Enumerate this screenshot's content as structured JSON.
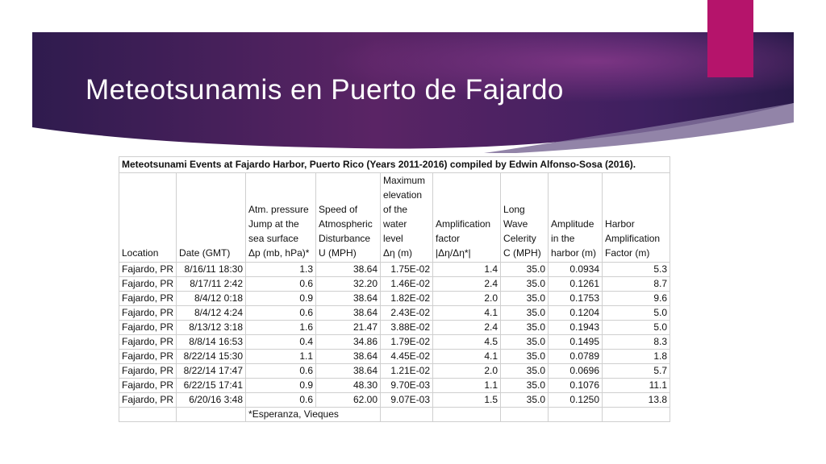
{
  "slide": {
    "title": "Meteotsunamis en Puerto de Fajardo",
    "colors": {
      "banner_dark": "#2f1b4e",
      "banner_mid": "#5a2465",
      "banner_glow": "#8a3a8c",
      "accent": "#b5146b"
    }
  },
  "table": {
    "caption": "Meteotsunami Events at Fajardo Harbor, Puerto Rico (Years 2011-2016) compiled by Edwin Alfonso-Sosa (2016).",
    "headers": [
      [
        "Location"
      ],
      [
        "Date (GMT)"
      ],
      [
        "Atm. pressure",
        "Jump at the",
        "sea surface",
        "Δp (mb, hPa)*"
      ],
      [
        "Speed of",
        "Atmospheric",
        "Disturbance",
        "U (MPH)"
      ],
      [
        "Maximum",
        "elevation",
        "of the",
        "water",
        "level",
        "Δη (m)"
      ],
      [
        "Amplification",
        "factor",
        "|Δη/Δη*|"
      ],
      [
        "Long",
        "Wave",
        "Celerity",
        "C (MPH)"
      ],
      [
        "Amplitude",
        "in the",
        "harbor (m)"
      ],
      [
        "Harbor",
        "Amplification",
        "Factor (m)"
      ]
    ],
    "rows": [
      [
        "Fajardo, PR",
        "8/16/11 18:30",
        "1.3",
        "38.64",
        "1.75E-02",
        "1.4",
        "35.0",
        "0.0934",
        "5.3"
      ],
      [
        "Fajardo, PR",
        "8/17/11 2:42",
        "0.6",
        "32.20",
        "1.46E-02",
        "2.4",
        "35.0",
        "0.1261",
        "8.7"
      ],
      [
        "Fajardo, PR",
        "8/4/12 0:18",
        "0.9",
        "38.64",
        "1.82E-02",
        "2.0",
        "35.0",
        "0.1753",
        "9.6"
      ],
      [
        "Fajardo, PR",
        "8/4/12 4:24",
        "0.6",
        "38.64",
        "2.43E-02",
        "4.1",
        "35.0",
        "0.1204",
        "5.0"
      ],
      [
        "Fajardo, PR",
        "8/13/12 3:18",
        "1.6",
        "21.47",
        "3.88E-02",
        "2.4",
        "35.0",
        "0.1943",
        "5.0"
      ],
      [
        "Fajardo, PR",
        "8/8/14 16:53",
        "0.4",
        "34.86",
        "1.79E-02",
        "4.5",
        "35.0",
        "0.1495",
        "8.3"
      ],
      [
        "Fajardo, PR",
        "8/22/14 15:30",
        "1.1",
        "38.64",
        "4.45E-02",
        "4.1",
        "35.0",
        "0.0789",
        "1.8"
      ],
      [
        "Fajardo, PR",
        "8/22/14 17:47",
        "0.6",
        "38.64",
        "1.21E-02",
        "2.0",
        "35.0",
        "0.0696",
        "5.7"
      ],
      [
        "Fajardo, PR",
        "6/22/15 17:41",
        "0.9",
        "48.30",
        "9.70E-03",
        "1.1",
        "35.0",
        "0.1076",
        "11.1"
      ],
      [
        "Fajardo, PR",
        "6/20/16 3:48",
        "0.6",
        "62.00",
        "9.07E-03",
        "1.5",
        "35.0",
        "0.1250",
        "13.8"
      ]
    ],
    "footnote": "*Esperanza, Vieques"
  }
}
